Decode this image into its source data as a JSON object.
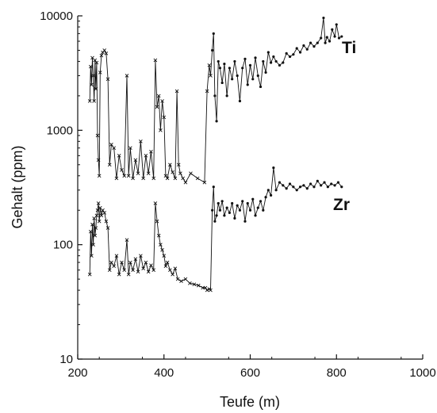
{
  "chart_data": {
    "type": "line",
    "title": "",
    "xlabel": "Teufe (m)",
    "ylabel": "Gehalt (ppm)",
    "xlim": [
      200,
      1000
    ],
    "ylim": [
      10,
      10000
    ],
    "yscale": "log",
    "x_ticks": [
      200,
      400,
      600,
      800,
      1000
    ],
    "x_tick_labels": [
      "200",
      "400",
      "600",
      "800",
      "1000"
    ],
    "y_ticks": [
      10,
      100,
      1000,
      10000
    ],
    "y_tick_labels": [
      "10",
      "100",
      "1000",
      "10000"
    ],
    "grid": false,
    "legend": "none",
    "series": [
      {
        "name": "Ti",
        "marker": "cross-then-dot",
        "color": "#111111",
        "x": [
          228,
          230,
          232,
          234,
          236,
          238,
          240,
          242,
          244,
          246,
          248,
          250,
          252,
          255,
          258,
          262,
          266,
          270,
          274,
          278,
          284,
          290,
          296,
          302,
          308,
          314,
          318,
          322,
          328,
          334,
          340,
          346,
          352,
          358,
          364,
          370,
          376,
          380,
          384,
          388,
          392,
          396,
          400,
          404,
          408,
          414,
          420,
          426,
          430,
          434,
          438,
          444,
          450,
          462,
          478,
          494,
          500,
          505,
          508,
          512,
          515,
          518,
          522,
          526,
          530,
          535,
          540,
          546,
          552,
          558,
          564,
          570,
          576,
          582,
          588,
          594,
          600,
          606,
          612,
          618,
          624,
          630,
          636,
          642,
          648,
          654,
          660,
          668,
          676,
          684,
          692,
          700,
          708,
          716,
          724,
          732,
          740,
          748,
          756,
          764,
          770,
          774,
          778,
          784,
          790,
          796,
          800,
          806,
          812
        ],
        "y": [
          1800,
          3600,
          2500,
          4300,
          3000,
          1800,
          4100,
          2300,
          3900,
          900,
          550,
          400,
          3200,
          4500,
          4800,
          5000,
          4700,
          2800,
          500,
          750,
          700,
          380,
          600,
          450,
          400,
          3000,
          400,
          700,
          380,
          550,
          420,
          800,
          380,
          600,
          420,
          650,
          380,
          4100,
          1600,
          2000,
          1000,
          1800,
          1300,
          400,
          380,
          500,
          430,
          380,
          2200,
          500,
          420,
          380,
          350,
          420,
          380,
          350,
          2200,
          3700,
          3000,
          5000,
          7000,
          2000,
          1200,
          4000,
          3500,
          2600,
          3800,
          2000,
          3500,
          2800,
          4000,
          3000,
          1800,
          3500,
          4200,
          2500,
          3700,
          2800,
          4300,
          3000,
          2400,
          4000,
          3200,
          4800,
          3900,
          4400,
          4000,
          3700,
          3900,
          4700,
          4400,
          4600,
          5200,
          4800,
          5500,
          5100,
          5800,
          5400,
          5800,
          6400,
          9600,
          5800,
          6500,
          6000,
          7600,
          6600,
          8400,
          6400,
          6600
        ]
      },
      {
        "name": "Zr",
        "marker": "cross-then-dot",
        "color": "#111111",
        "x": [
          228,
          230,
          232,
          234,
          236,
          238,
          240,
          242,
          244,
          246,
          248,
          250,
          252,
          255,
          258,
          262,
          266,
          270,
          274,
          278,
          284,
          290,
          296,
          302,
          308,
          314,
          318,
          322,
          328,
          334,
          340,
          346,
          352,
          358,
          364,
          370,
          376,
          380,
          384,
          388,
          392,
          396,
          400,
          404,
          408,
          414,
          420,
          426,
          432,
          440,
          450,
          460,
          470,
          480,
          490,
          496,
          500,
          505,
          508,
          512,
          515,
          518,
          522,
          526,
          530,
          535,
          540,
          546,
          552,
          558,
          564,
          570,
          576,
          582,
          588,
          594,
          600,
          606,
          612,
          618,
          624,
          630,
          636,
          642,
          648,
          654,
          660,
          668,
          676,
          684,
          692,
          700,
          708,
          716,
          724,
          732,
          740,
          748,
          756,
          764,
          772,
          780,
          788,
          796,
          804,
          812
        ],
        "y": [
          55,
          130,
          80,
          150,
          100,
          170,
          120,
          140,
          180,
          200,
          230,
          160,
          210,
          180,
          200,
          190,
          160,
          140,
          60,
          70,
          65,
          80,
          55,
          70,
          60,
          110,
          55,
          70,
          60,
          75,
          58,
          80,
          62,
          70,
          58,
          66,
          60,
          230,
          160,
          120,
          100,
          90,
          80,
          65,
          70,
          60,
          55,
          62,
          50,
          48,
          50,
          46,
          45,
          44,
          42,
          42,
          40,
          41,
          40,
          200,
          320,
          160,
          180,
          230,
          200,
          240,
          180,
          210,
          190,
          230,
          170,
          220,
          200,
          240,
          160,
          230,
          200,
          250,
          180,
          210,
          240,
          200,
          260,
          300,
          270,
          470,
          300,
          350,
          330,
          310,
          340,
          320,
          300,
          320,
          330,
          310,
          340,
          320,
          360,
          330,
          350,
          320,
          340,
          330,
          350,
          320
        ]
      }
    ]
  }
}
